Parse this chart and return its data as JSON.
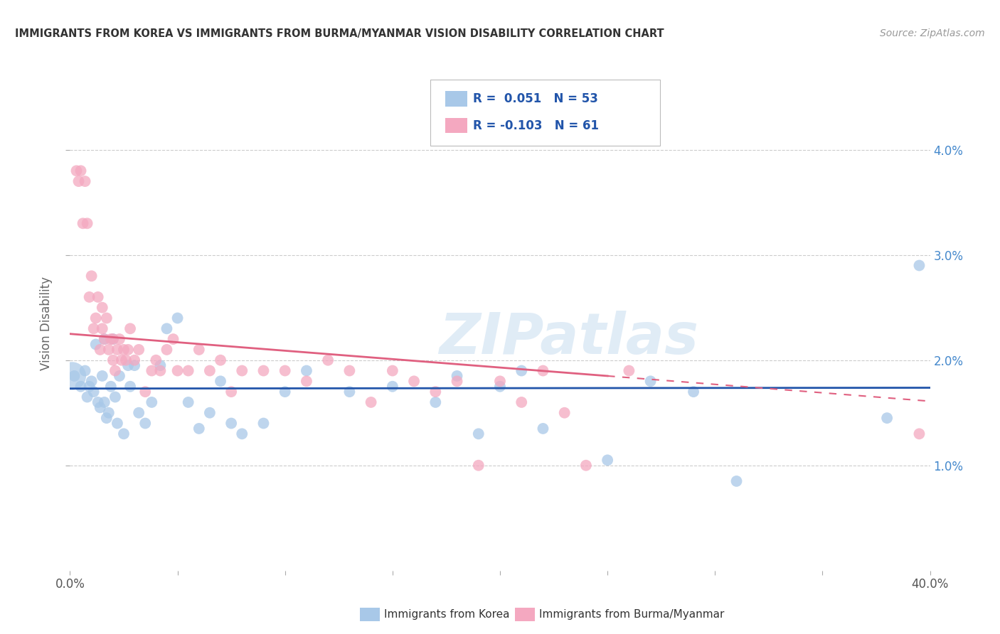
{
  "title": "IMMIGRANTS FROM KOREA VS IMMIGRANTS FROM BURMA/MYANMAR VISION DISABILITY CORRELATION CHART",
  "source": "Source: ZipAtlas.com",
  "ylabel": "Vision Disability",
  "xlim": [
    0.0,
    0.4
  ],
  "ylim": [
    0.0,
    0.047
  ],
  "xticks": [
    0.0,
    0.05,
    0.1,
    0.15,
    0.2,
    0.25,
    0.3,
    0.35,
    0.4
  ],
  "xticklabels_ends": [
    "0.0%",
    "40.0%"
  ],
  "yticks": [
    0.01,
    0.02,
    0.03,
    0.04
  ],
  "yticklabels": [
    "1.0%",
    "2.0%",
    "3.0%",
    "4.0%"
  ],
  "korea_R": 0.051,
  "korea_N": 53,
  "burma_R": -0.103,
  "burma_N": 61,
  "korea_color": "#a8c8e8",
  "burma_color": "#f4a8c0",
  "korea_line_color": "#2255aa",
  "burma_line_color": "#e06080",
  "korea_scatter_x": [
    0.002,
    0.005,
    0.007,
    0.008,
    0.009,
    0.01,
    0.011,
    0.012,
    0.013,
    0.014,
    0.015,
    0.016,
    0.016,
    0.017,
    0.018,
    0.019,
    0.02,
    0.021,
    0.022,
    0.023,
    0.025,
    0.027,
    0.028,
    0.03,
    0.032,
    0.035,
    0.038,
    0.042,
    0.045,
    0.05,
    0.055,
    0.06,
    0.065,
    0.07,
    0.075,
    0.08,
    0.09,
    0.1,
    0.11,
    0.13,
    0.15,
    0.17,
    0.18,
    0.19,
    0.2,
    0.21,
    0.22,
    0.25,
    0.27,
    0.29,
    0.31,
    0.38,
    0.395
  ],
  "korea_scatter_y": [
    0.0185,
    0.0175,
    0.019,
    0.0165,
    0.0175,
    0.018,
    0.017,
    0.0215,
    0.016,
    0.0155,
    0.0185,
    0.016,
    0.022,
    0.0145,
    0.015,
    0.0175,
    0.022,
    0.0165,
    0.014,
    0.0185,
    0.013,
    0.0195,
    0.0175,
    0.0195,
    0.015,
    0.014,
    0.016,
    0.0195,
    0.023,
    0.024,
    0.016,
    0.0135,
    0.015,
    0.018,
    0.014,
    0.013,
    0.014,
    0.017,
    0.019,
    0.017,
    0.0175,
    0.016,
    0.0185,
    0.013,
    0.0175,
    0.019,
    0.0135,
    0.0105,
    0.018,
    0.017,
    0.0085,
    0.0145,
    0.029
  ],
  "burma_scatter_x": [
    0.003,
    0.004,
    0.005,
    0.006,
    0.007,
    0.008,
    0.009,
    0.01,
    0.011,
    0.012,
    0.013,
    0.014,
    0.015,
    0.015,
    0.016,
    0.017,
    0.018,
    0.019,
    0.02,
    0.02,
    0.021,
    0.022,
    0.023,
    0.024,
    0.025,
    0.026,
    0.027,
    0.028,
    0.03,
    0.032,
    0.035,
    0.038,
    0.04,
    0.042,
    0.045,
    0.048,
    0.05,
    0.055,
    0.06,
    0.065,
    0.07,
    0.075,
    0.08,
    0.09,
    0.1,
    0.11,
    0.12,
    0.13,
    0.14,
    0.15,
    0.16,
    0.17,
    0.18,
    0.19,
    0.2,
    0.21,
    0.22,
    0.23,
    0.24,
    0.26,
    0.395
  ],
  "burma_scatter_y": [
    0.038,
    0.037,
    0.038,
    0.033,
    0.037,
    0.033,
    0.026,
    0.028,
    0.023,
    0.024,
    0.026,
    0.021,
    0.025,
    0.023,
    0.022,
    0.024,
    0.021,
    0.022,
    0.022,
    0.02,
    0.019,
    0.021,
    0.022,
    0.02,
    0.021,
    0.02,
    0.021,
    0.023,
    0.02,
    0.021,
    0.017,
    0.019,
    0.02,
    0.019,
    0.021,
    0.022,
    0.019,
    0.019,
    0.021,
    0.019,
    0.02,
    0.017,
    0.019,
    0.019,
    0.019,
    0.018,
    0.02,
    0.019,
    0.016,
    0.019,
    0.018,
    0.017,
    0.018,
    0.01,
    0.018,
    0.016,
    0.019,
    0.015,
    0.01,
    0.019,
    0.013
  ],
  "watermark": "ZIPatlas",
  "background_color": "#ffffff",
  "grid_color": "#cccccc",
  "korea_line_intercept": 0.0173,
  "korea_line_slope": 0.0002,
  "burma_line_intercept": 0.0225,
  "burma_line_slope": -0.016
}
